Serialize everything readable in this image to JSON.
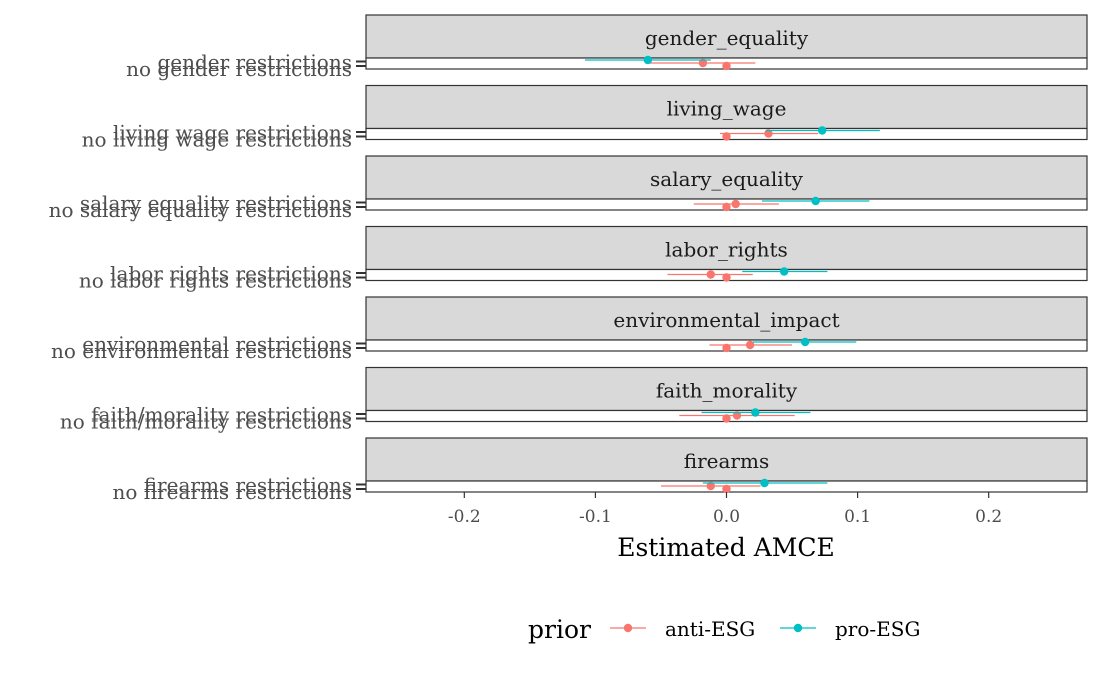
{
  "chart_data": {
    "type": "scatter",
    "xlabel": "Estimated AMCE",
    "ylabel": "",
    "xlim": [
      -0.275,
      0.275
    ],
    "xticks": [
      -0.2,
      -0.1,
      0.0,
      0.1,
      0.2
    ],
    "xtick_labels": [
      "-0.2",
      "-0.1",
      "0.0",
      "0.1",
      "0.2"
    ],
    "legend": {
      "title": "prior",
      "position": "bottom",
      "entries": [
        {
          "name": "anti-ESG",
          "color": "#F8766D"
        },
        {
          "name": "pro-ESG",
          "color": "#00BFC4"
        }
      ]
    },
    "panels": [
      {
        "strip": "gender_equality",
        "labels": [
          "gender restrictions",
          "no gender restrictions"
        ],
        "reference": {
          "label": "no gender restrictions",
          "estimate": 0.0
        },
        "series": [
          {
            "name": "anti-ESG",
            "estimate": -0.018,
            "lower": -0.06,
            "upper": 0.022
          },
          {
            "name": "pro-ESG",
            "estimate": -0.06,
            "lower": -0.108,
            "upper": -0.012
          }
        ]
      },
      {
        "strip": "living_wage",
        "labels": [
          "living wage restrictions",
          "no living wage restrictions"
        ],
        "reference": {
          "label": "no living wage restrictions",
          "estimate": 0.0
        },
        "series": [
          {
            "name": "anti-ESG",
            "estimate": 0.032,
            "lower": -0.005,
            "upper": 0.07
          },
          {
            "name": "pro-ESG",
            "estimate": 0.073,
            "lower": 0.03,
            "upper": 0.117
          }
        ]
      },
      {
        "strip": "salary_equality",
        "labels": [
          "salary equality restrictions",
          "no salary equality restrictions"
        ],
        "reference": {
          "label": "no salary equality restrictions",
          "estimate": 0.0
        },
        "series": [
          {
            "name": "anti-ESG",
            "estimate": 0.007,
            "lower": -0.025,
            "upper": 0.04
          },
          {
            "name": "pro-ESG",
            "estimate": 0.068,
            "lower": 0.027,
            "upper": 0.109
          }
        ]
      },
      {
        "strip": "labor_rights",
        "labels": [
          "labor rights restrictions",
          "no labor rights restrictions"
        ],
        "reference": {
          "label": "no labor rights restrictions",
          "estimate": 0.0
        },
        "series": [
          {
            "name": "anti-ESG",
            "estimate": -0.012,
            "lower": -0.045,
            "upper": 0.02
          },
          {
            "name": "pro-ESG",
            "estimate": 0.044,
            "lower": 0.012,
            "upper": 0.077
          }
        ]
      },
      {
        "strip": "environmental_impact",
        "labels": [
          "environmental restrictions",
          "no environmental restrictions"
        ],
        "reference": {
          "label": "no environmental restrictions",
          "estimate": 0.0
        },
        "series": [
          {
            "name": "anti-ESG",
            "estimate": 0.018,
            "lower": -0.013,
            "upper": 0.05
          },
          {
            "name": "pro-ESG",
            "estimate": 0.06,
            "lower": 0.02,
            "upper": 0.099
          }
        ]
      },
      {
        "strip": "faith_morality",
        "labels": [
          "faith/morality restrictions",
          "no faith/morality restrictions"
        ],
        "reference": {
          "label": "no faith/morality restrictions",
          "estimate": 0.0
        },
        "series": [
          {
            "name": "anti-ESG",
            "estimate": 0.008,
            "lower": -0.036,
            "upper": 0.052
          },
          {
            "name": "pro-ESG",
            "estimate": 0.022,
            "lower": -0.019,
            "upper": 0.064
          }
        ]
      },
      {
        "strip": "firearms",
        "labels": [
          "firearms restrictions",
          "no firearms restrictions"
        ],
        "reference": {
          "label": "no firearms restrictions",
          "estimate": 0.0
        },
        "series": [
          {
            "name": "anti-ESG",
            "estimate": -0.012,
            "lower": -0.05,
            "upper": 0.026
          },
          {
            "name": "pro-ESG",
            "estimate": 0.029,
            "lower": -0.018,
            "upper": 0.077
          }
        ]
      }
    ]
  }
}
